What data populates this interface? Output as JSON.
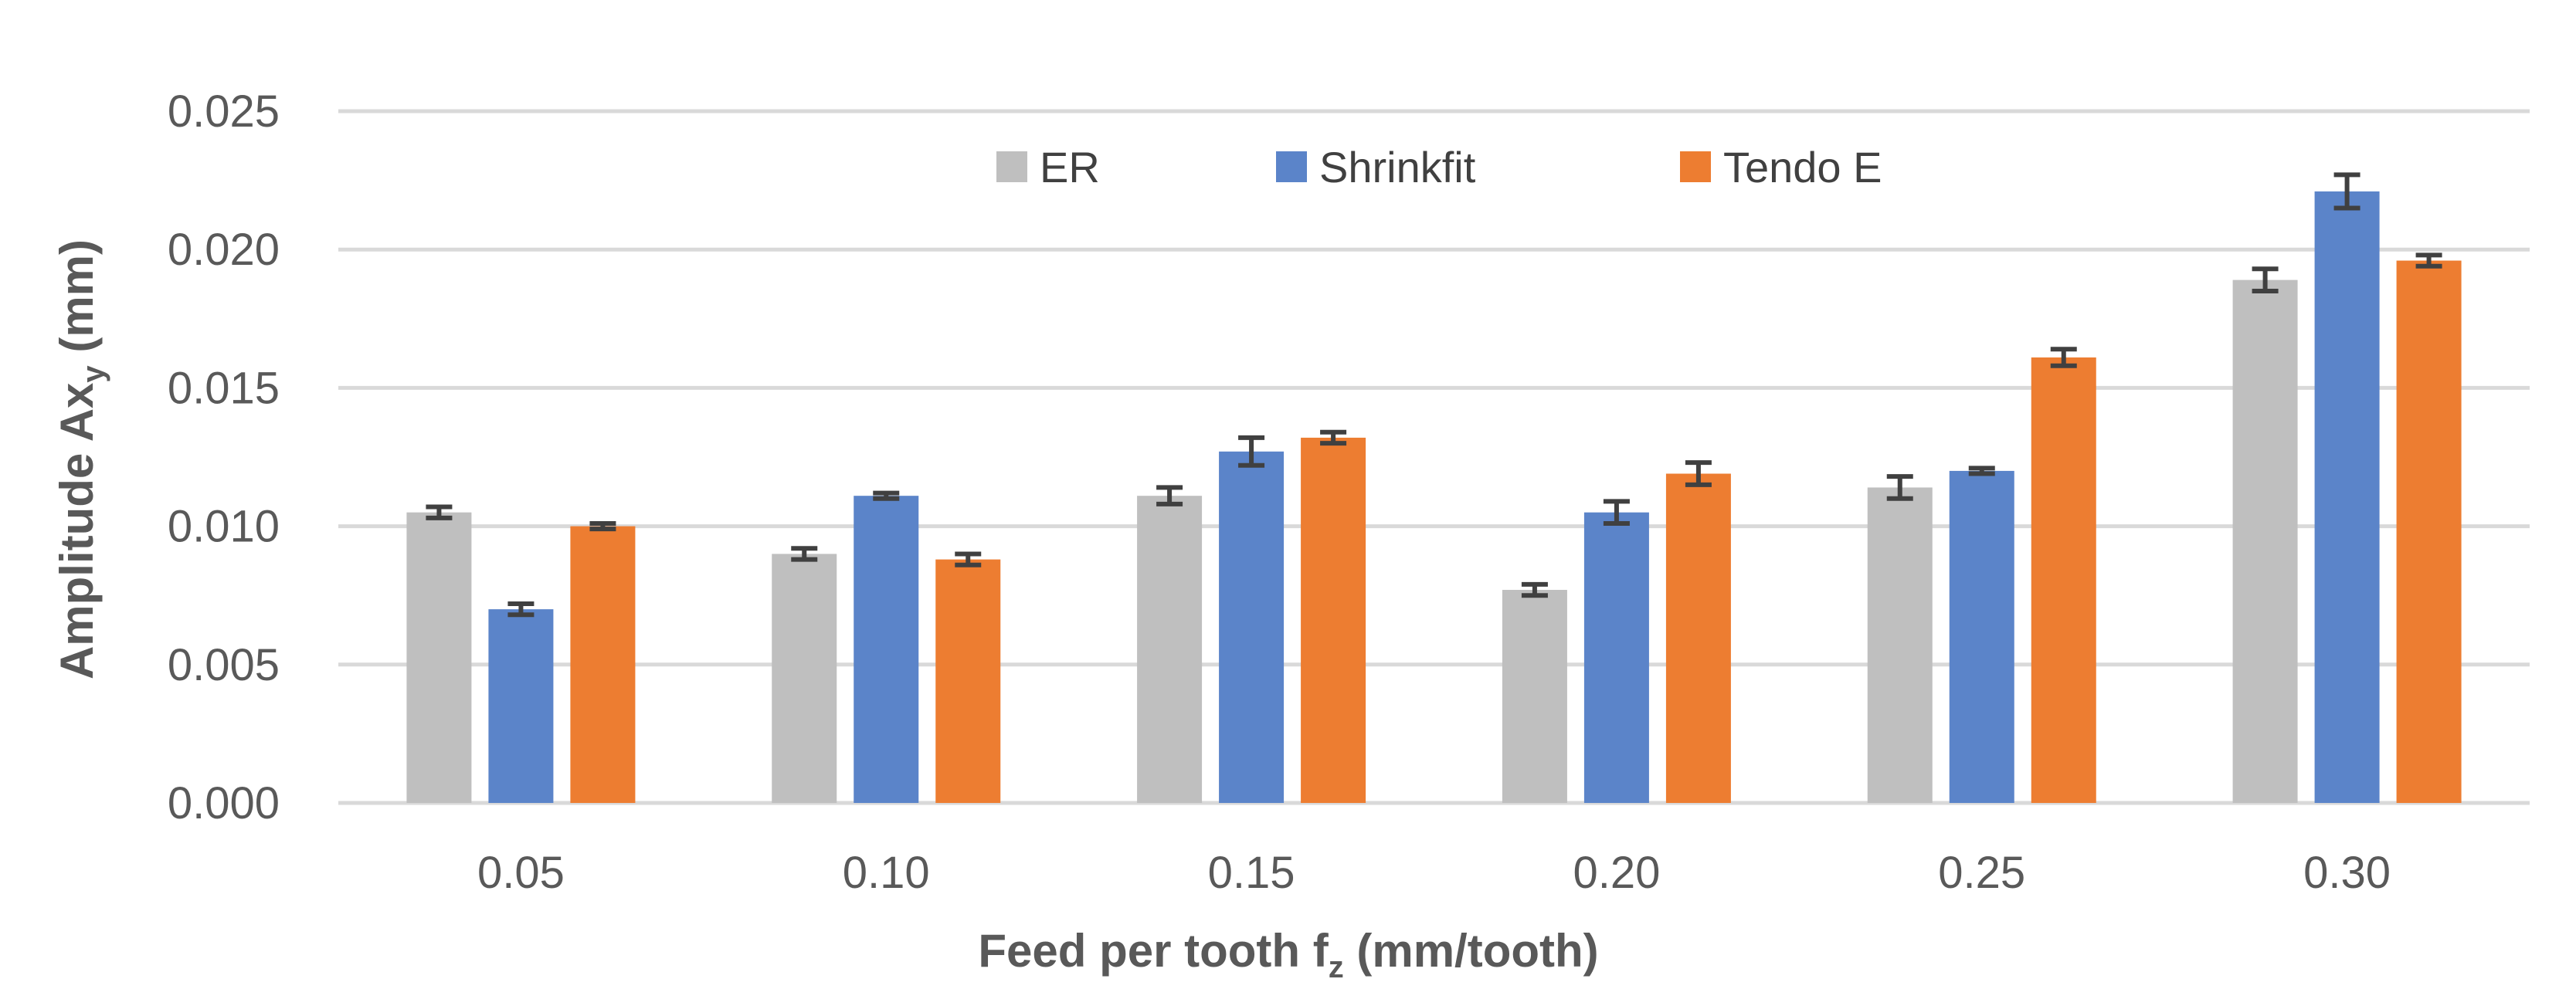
{
  "chart_data": {
    "type": "bar",
    "title": "",
    "xlabel": "Feed per tooth f",
    "xlabel_sub": "z",
    "xlabel_unit": " (mm/tooth)",
    "ylabel": "Amplitude Ax",
    "ylabel_sub": "y",
    "ylabel_unit": " (mm)",
    "ylim": [
      0,
      0.025
    ],
    "yticks": [
      "0.000",
      "0.005",
      "0.010",
      "0.015",
      "0.020",
      "0.025"
    ],
    "ytick_values": [
      0,
      0.005,
      0.01,
      0.015,
      0.02,
      0.025
    ],
    "categories": [
      "0.05",
      "0.10",
      "0.15",
      "0.20",
      "0.25",
      "0.30"
    ],
    "legend_position": "top-center",
    "grid": true,
    "series": [
      {
        "name": "ER",
        "color": "#bfbfbf",
        "values": [
          0.0105,
          0.009,
          0.0111,
          0.0077,
          0.0114,
          0.0189
        ],
        "errors": [
          0.0002,
          0.0002,
          0.0003,
          0.0002,
          0.0004,
          0.0004
        ]
      },
      {
        "name": "Shrinkfit",
        "color": "#5b84c9",
        "values": [
          0.007,
          0.0111,
          0.0127,
          0.0105,
          0.012,
          0.0221
        ],
        "errors": [
          0.0002,
          0.0001,
          0.0005,
          0.0004,
          0.0001,
          0.0006
        ]
      },
      {
        "name": "Tendo E",
        "color": "#ed7d31",
        "values": [
          0.01,
          0.0088,
          0.0132,
          0.0119,
          0.0161,
          0.0196
        ],
        "errors": [
          0.0001,
          0.0002,
          0.0002,
          0.0004,
          0.0003,
          0.0002
        ]
      }
    ]
  }
}
